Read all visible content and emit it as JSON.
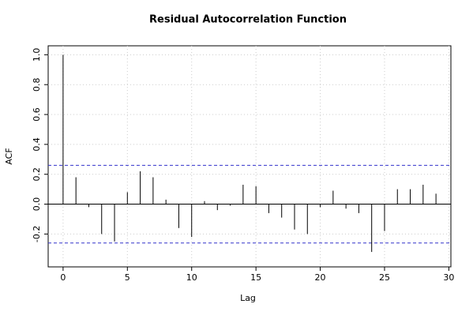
{
  "chart_data": {
    "type": "acf",
    "title": "Residual Autocorrelation Function",
    "x_label": "Lag",
    "y_label": "ACF",
    "x": [
      0,
      1,
      2,
      3,
      4,
      5,
      6,
      7,
      8,
      9,
      10,
      11,
      12,
      13,
      14,
      15,
      16,
      17,
      18,
      19,
      20,
      21,
      22,
      23,
      24,
      25,
      26,
      27,
      28,
      29
    ],
    "values": [
      1.0,
      0.18,
      -0.02,
      -0.2,
      -0.25,
      0.08,
      0.22,
      0.18,
      0.03,
      -0.16,
      -0.22,
      0.02,
      -0.04,
      -0.01,
      0.13,
      0.12,
      -0.06,
      -0.09,
      -0.17,
      -0.2,
      -0.02,
      0.09,
      -0.03,
      -0.06,
      -0.32,
      -0.18,
      0.1,
      0.1,
      0.13,
      0.07
    ],
    "color": "#000000",
    "conf_limits": [
      0.26,
      -0.26
    ],
    "conf_color": "#3333cc",
    "xlim": [
      -1.16,
      30.16
    ],
    "xticks": [
      0,
      5,
      10,
      15,
      20,
      25,
      30
    ],
    "ylim": [
      -0.42,
      1.06
    ],
    "yticks": [
      -0.2,
      {
        "value": 0,
        "label": "0.0"
      },
      0.2,
      0.4,
      0.6,
      0.8,
      {
        "value": 1,
        "label": "1.0"
      }
    ],
    "grid": true
  }
}
